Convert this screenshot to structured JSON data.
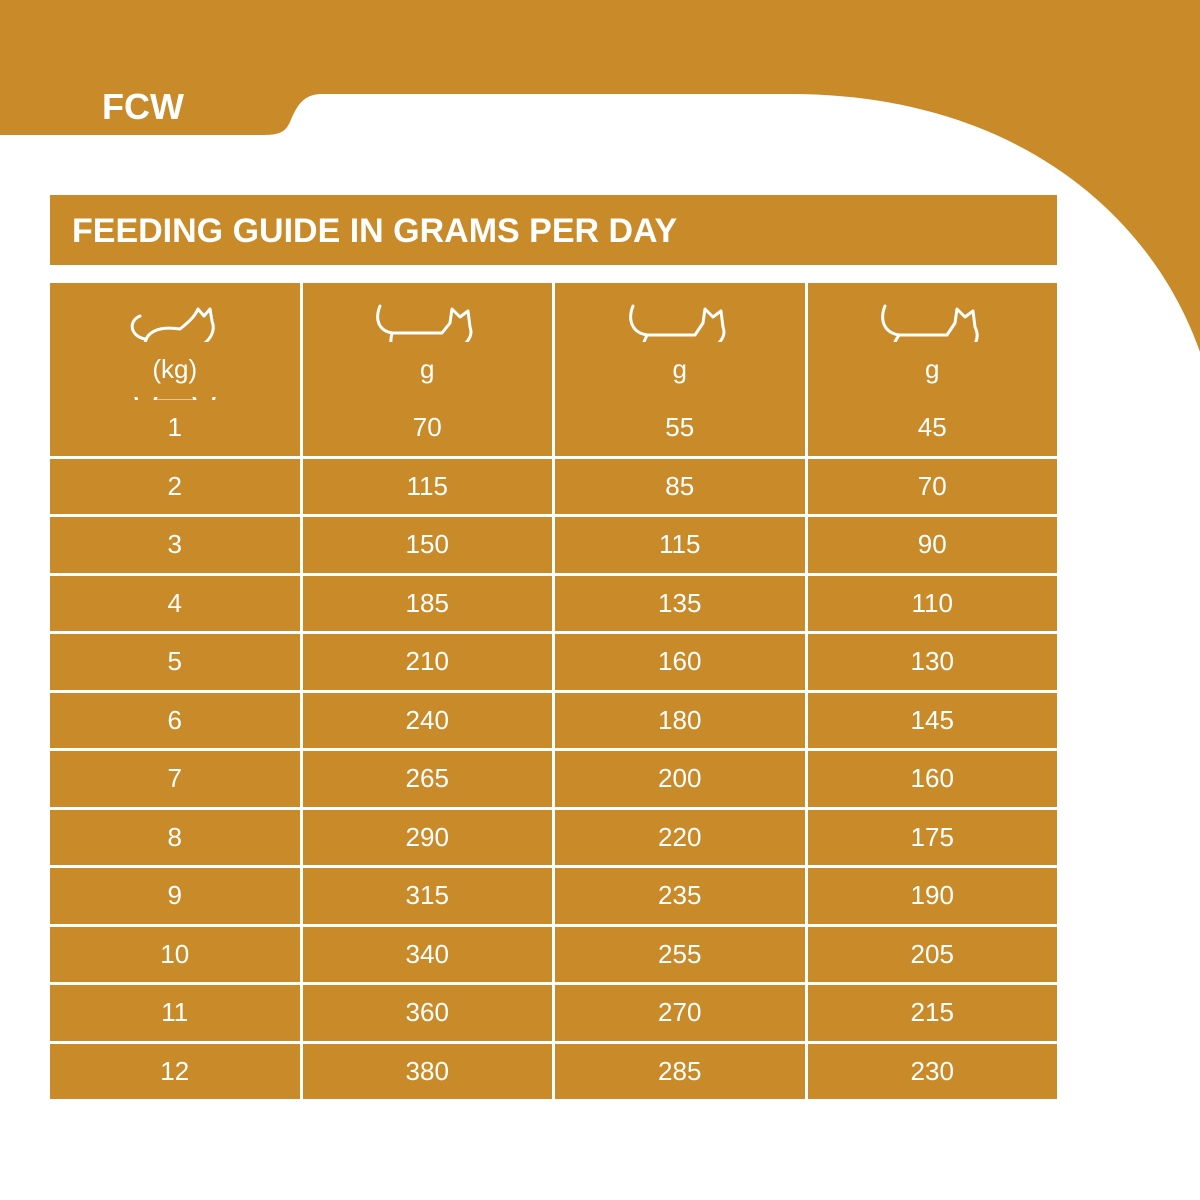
{
  "header": {
    "brand": "FCW"
  },
  "title": "FEEDING GUIDE IN GRAMS PER DAY",
  "table": {
    "units": [
      "(kg)",
      "g",
      "g",
      "g"
    ],
    "rows": [
      [
        1,
        70,
        55,
        45
      ],
      [
        2,
        115,
        85,
        70
      ],
      [
        3,
        150,
        115,
        90
      ],
      [
        4,
        185,
        135,
        110
      ],
      [
        5,
        210,
        160,
        130
      ],
      [
        6,
        240,
        180,
        145
      ],
      [
        7,
        265,
        200,
        160
      ],
      [
        8,
        290,
        220,
        175
      ],
      [
        9,
        315,
        235,
        190
      ],
      [
        10,
        340,
        255,
        205
      ],
      [
        11,
        360,
        270,
        215
      ],
      [
        12,
        380,
        285,
        230
      ]
    ]
  }
}
